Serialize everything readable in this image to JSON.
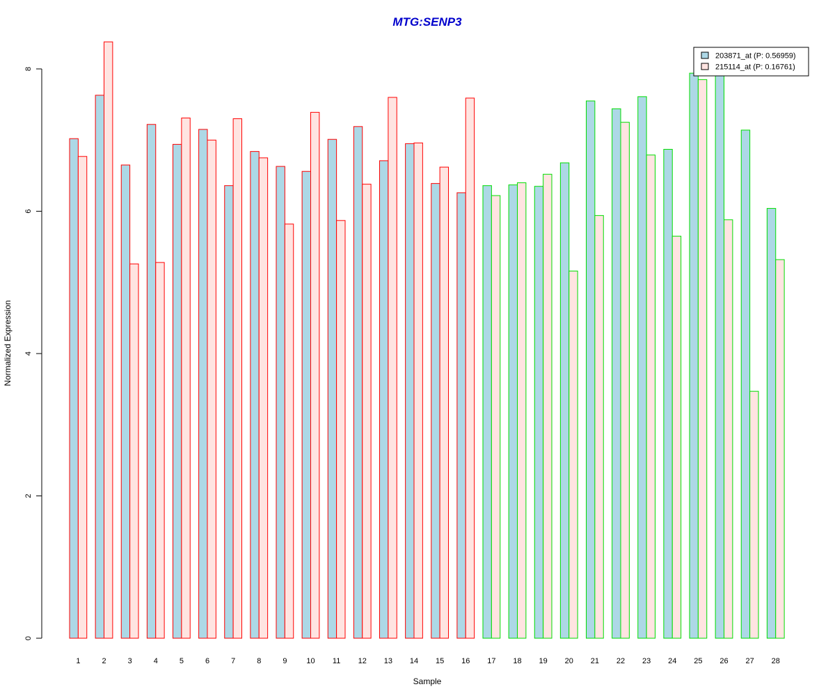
{
  "chart_data": {
    "type": "bar",
    "title": "MTG:SENP3",
    "xlabel": "Sample",
    "ylabel": "Normalized Expression",
    "ylim": [
      0,
      8.4
    ],
    "yticks": [
      0,
      2,
      4,
      6,
      8
    ],
    "grid": false,
    "legend_position": "top-right",
    "categories": [
      "1",
      "2",
      "3",
      "4",
      "5",
      "6",
      "7",
      "8",
      "9",
      "10",
      "11",
      "12",
      "13",
      "14",
      "15",
      "16",
      "17",
      "18",
      "19",
      "20",
      "21",
      "22",
      "23",
      "24",
      "25",
      "26",
      "27",
      "28"
    ],
    "groups": [
      {
        "samples": [
          "1",
          "2",
          "3",
          "4",
          "5",
          "6",
          "7",
          "8",
          "9",
          "10",
          "11",
          "12",
          "13",
          "14",
          "15",
          "16"
        ],
        "border_color": "#ff0000"
      },
      {
        "samples": [
          "17",
          "18",
          "19",
          "20",
          "21",
          "22",
          "23",
          "24",
          "25",
          "26",
          "27",
          "28"
        ],
        "border_color": "#00dd00"
      }
    ],
    "series": [
      {
        "name": "203871_at (P: 0.56959)",
        "color": "#add8e6",
        "values": [
          7.02,
          7.63,
          6.65,
          7.22,
          6.94,
          7.15,
          6.36,
          6.84,
          6.63,
          6.56,
          7.01,
          7.19,
          6.71,
          6.95,
          6.39,
          6.26,
          6.36,
          6.37,
          6.35,
          6.68,
          7.55,
          7.44,
          7.61,
          6.87,
          7.94,
          7.95,
          7.14,
          6.04
        ]
      },
      {
        "name": "215114_at (P: 0.16761)",
        "color": "#ffe4e1",
        "values": [
          6.77,
          8.38,
          5.26,
          5.28,
          7.31,
          7.0,
          7.3,
          6.75,
          5.82,
          7.39,
          5.87,
          6.38,
          7.6,
          6.96,
          6.62,
          7.59,
          6.22,
          6.4,
          6.52,
          5.16,
          5.94,
          7.25,
          6.79,
          5.65,
          7.85,
          5.88,
          3.47,
          5.32
        ]
      }
    ],
    "legend_fill_colors": [
      "#add8e6",
      "#ffe4e1"
    ],
    "title_color": "#0000cc"
  }
}
